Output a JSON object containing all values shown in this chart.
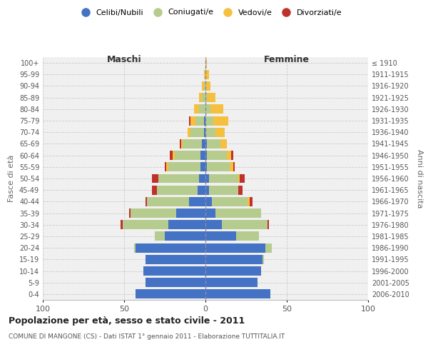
{
  "age_groups": [
    "0-4",
    "5-9",
    "10-14",
    "15-19",
    "20-24",
    "25-29",
    "30-34",
    "35-39",
    "40-44",
    "45-49",
    "50-54",
    "55-59",
    "60-64",
    "65-69",
    "70-74",
    "75-79",
    "80-84",
    "85-89",
    "90-94",
    "95-99",
    "100+"
  ],
  "birth_years": [
    "2006-2010",
    "2001-2005",
    "1996-2000",
    "1991-1995",
    "1986-1990",
    "1981-1985",
    "1976-1980",
    "1971-1975",
    "1966-1970",
    "1961-1965",
    "1956-1960",
    "1951-1955",
    "1946-1950",
    "1941-1945",
    "1936-1940",
    "1931-1935",
    "1926-1930",
    "1921-1925",
    "1916-1920",
    "1911-1915",
    "≤ 1910"
  ],
  "males_celibi": [
    43,
    37,
    38,
    37,
    43,
    25,
    23,
    18,
    10,
    5,
    4,
    3,
    3,
    2,
    1,
    1,
    0,
    0,
    0,
    0,
    0
  ],
  "males_coniugati": [
    0,
    0,
    0,
    0,
    1,
    6,
    28,
    28,
    26,
    25,
    25,
    20,
    16,
    12,
    8,
    5,
    4,
    2,
    1,
    0,
    0
  ],
  "males_vedovi": [
    0,
    0,
    0,
    0,
    0,
    0,
    0,
    0,
    0,
    0,
    0,
    1,
    1,
    1,
    2,
    3,
    3,
    2,
    1,
    1,
    0
  ],
  "males_divorziati": [
    0,
    0,
    0,
    0,
    0,
    0,
    1,
    1,
    1,
    3,
    4,
    1,
    2,
    1,
    0,
    1,
    0,
    0,
    0,
    0,
    0
  ],
  "females_celibi": [
    40,
    32,
    34,
    35,
    37,
    19,
    10,
    6,
    4,
    2,
    2,
    1,
    1,
    1,
    0,
    0,
    0,
    0,
    0,
    0,
    0
  ],
  "females_coniugati": [
    0,
    0,
    0,
    1,
    4,
    14,
    28,
    28,
    22,
    18,
    18,
    14,
    12,
    8,
    6,
    5,
    3,
    1,
    0,
    0,
    0
  ],
  "females_vedovi": [
    0,
    0,
    0,
    0,
    0,
    0,
    0,
    0,
    1,
    0,
    1,
    2,
    3,
    4,
    6,
    9,
    8,
    5,
    3,
    2,
    1
  ],
  "females_divorziati": [
    0,
    0,
    0,
    0,
    0,
    0,
    1,
    0,
    2,
    3,
    3,
    1,
    1,
    0,
    0,
    0,
    0,
    0,
    0,
    0,
    0
  ],
  "color_celibi": "#4472c4",
  "color_coniugati": "#b5cc8e",
  "color_vedovi": "#f5c040",
  "color_divorziati": "#c0312b",
  "title": "Popolazione per età, sesso e stato civile - 2011",
  "subtitle": "COMUNE DI MANGONE (CS) - Dati ISTAT 1° gennaio 2011 - Elaborazione TUTTITALIA.IT",
  "xlabel_left": "Maschi",
  "xlabel_right": "Femmine",
  "ylabel": "Fasce di età",
  "ylabel_right": "Anni di nascita",
  "xlim": 100,
  "bg_plot": "#f0f0f0",
  "background_color": "#ffffff",
  "grid_color": "#cccccc"
}
